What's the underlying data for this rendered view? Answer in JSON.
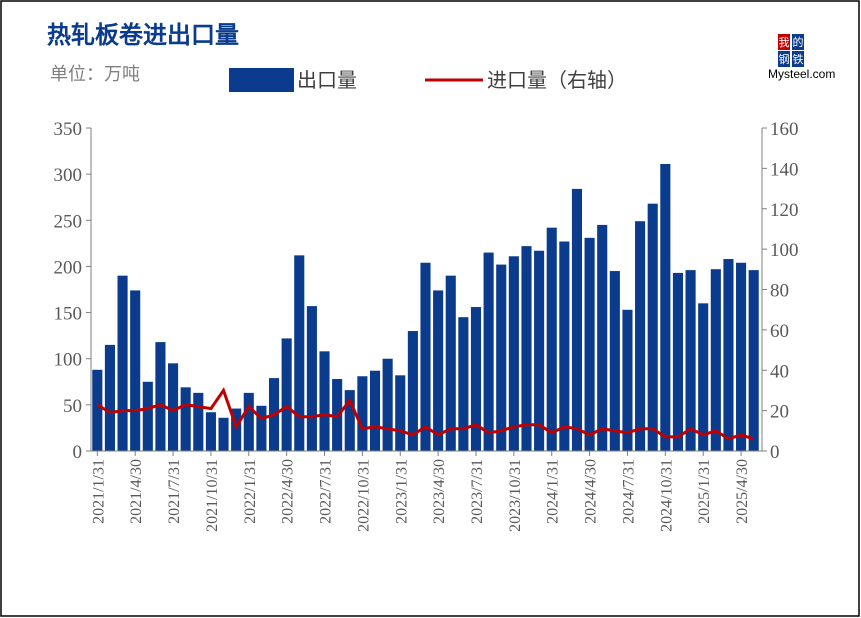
{
  "chart_data": {
    "type": "bar_line",
    "title": "热轧板卷进出口量",
    "unit": "单位：万吨",
    "logo": {
      "chars": [
        "我",
        "的",
        "钢",
        "铁"
      ],
      "text": "Mysteel.com"
    },
    "categories": [
      "2021/1/31",
      null,
      null,
      "2021/4/30",
      null,
      null,
      "2021/7/31",
      null,
      null,
      "2021/10/31",
      null,
      null,
      "2022/1/31",
      null,
      null,
      "2022/4/30",
      null,
      null,
      "2022/7/31",
      null,
      null,
      "2022/10/31",
      null,
      null,
      "2023/1/31",
      null,
      null,
      "2023/4/30",
      null,
      null,
      "2023/7/31",
      null,
      null,
      "2023/10/31",
      null,
      null,
      "2024/1/31",
      null,
      null,
      "2024/4/30",
      null,
      null,
      "2024/7/31",
      null,
      null,
      "2024/10/31",
      null,
      null,
      "2025/1/31",
      null,
      null,
      "2025/4/30",
      null
    ],
    "series": [
      {
        "name": "出口量",
        "type": "bar",
        "color": "#0a3b8c",
        "values": [
          88,
          115,
          190,
          174,
          75,
          118,
          95,
          69,
          63,
          42,
          36,
          46,
          63,
          49,
          79,
          122,
          212,
          157,
          108,
          78,
          66,
          81,
          87,
          100,
          82,
          130,
          204,
          174,
          190,
          145,
          156,
          215,
          202,
          211,
          222,
          217,
          242,
          227,
          284,
          231,
          245,
          195,
          153,
          249,
          268,
          311,
          193,
          196,
          160,
          197,
          208,
          204,
          196
        ]
      },
      {
        "name": "进口量（右轴）",
        "type": "line",
        "axis": "y2",
        "color": "#c00000",
        "values": [
          23,
          19,
          20,
          20,
          21,
          23,
          20,
          23,
          22,
          21,
          30,
          12,
          22,
          16,
          18,
          22,
          17,
          17,
          18,
          17,
          25,
          11,
          12,
          11,
          10,
          8,
          12,
          8,
          11,
          11,
          13,
          9,
          10,
          12,
          13,
          13,
          9,
          12,
          11,
          8,
          11,
          10,
          9,
          11,
          11,
          7,
          7,
          11,
          8,
          10,
          6,
          8,
          6
        ]
      }
    ],
    "ylim": [
      0,
      350
    ],
    "yticks": [
      0,
      50,
      100,
      150,
      200,
      250,
      300,
      350
    ],
    "y2lim": [
      0,
      160
    ],
    "y2ticks": [
      0,
      20,
      40,
      60,
      80,
      100,
      120,
      140,
      160
    ]
  }
}
